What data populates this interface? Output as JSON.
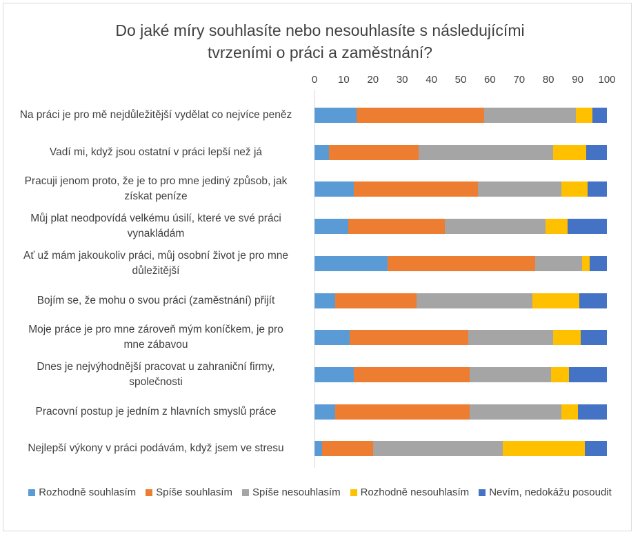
{
  "chart_data": {
    "type": "bar",
    "orientation": "horizontal",
    "stacked": true,
    "title": [
      "Do jaké míry souhlasíte nebo nesouhlasíte s následujícími",
      "tvrzeními o práci a zaměstnání?"
    ],
    "xlim": [
      0,
      100
    ],
    "xticks": [
      "0",
      "10",
      "20",
      "30",
      "40",
      "50",
      "60",
      "70",
      "80",
      "90",
      "100"
    ],
    "xlabel": "",
    "ylabel": "",
    "legend_position": "bottom",
    "categories": [
      [
        "Na práci je pro mě nejdůležitější vydělat co nejvíce peněz"
      ],
      [
        "Vadí mi, když jsou ostatní v práci lepší než já"
      ],
      [
        "Pracuji jenom proto, že je to pro mne jediný způsob, jak",
        "získat peníze"
      ],
      [
        "Můj plat neodpovídá velkému úsilí, které ve své práci",
        "vynakládám"
      ],
      [
        "Ať už mám jakoukoliv práci, můj osobní život je pro mne",
        "důležitější"
      ],
      [
        "Bojím se, že mohu o svou práci (zaměstnání) přijít"
      ],
      [
        "Moje práce je pro mne zároveň mým koníčkem, je pro",
        "mne zábavou"
      ],
      [
        "Dnes je nejvýhodnější pracovat u zahraniční firmy,",
        "společnosti"
      ],
      [
        "Pracovní postup je jedním z hlavních smyslů práce"
      ],
      [
        "Nejlepší výkony v práci podávám, když jsem ve stresu"
      ]
    ],
    "series": [
      {
        "name": "Rozhodně souhlasím",
        "color": "#5b9bd5",
        "values": [
          14.5,
          5,
          13.5,
          11.5,
          25,
          7,
          12,
          13.5,
          7,
          2.5
        ]
      },
      {
        "name": "Spíše souhlasím",
        "color": "#ed7d31",
        "values": [
          43.5,
          30.5,
          42.5,
          33,
          50.5,
          28,
          40.5,
          39.5,
          46,
          17.5
        ]
      },
      {
        "name": "Spíše nesouhlasím",
        "color": "#a5a5a5",
        "values": [
          31.5,
          46,
          28.5,
          34.5,
          16,
          39.5,
          29,
          28,
          31.5,
          44.5
        ]
      },
      {
        "name": "Rozhodně nesouhlasím",
        "color": "#ffc000",
        "values": [
          5.5,
          11.5,
          9,
          7.5,
          2.5,
          16,
          9.5,
          6,
          5.5,
          28
        ]
      },
      {
        "name": "Nevím, nedokážu posoudit",
        "color": "#4472c4",
        "values": [
          5,
          7,
          6.5,
          13.5,
          6,
          9.5,
          9,
          13,
          10,
          7.5
        ]
      }
    ]
  }
}
